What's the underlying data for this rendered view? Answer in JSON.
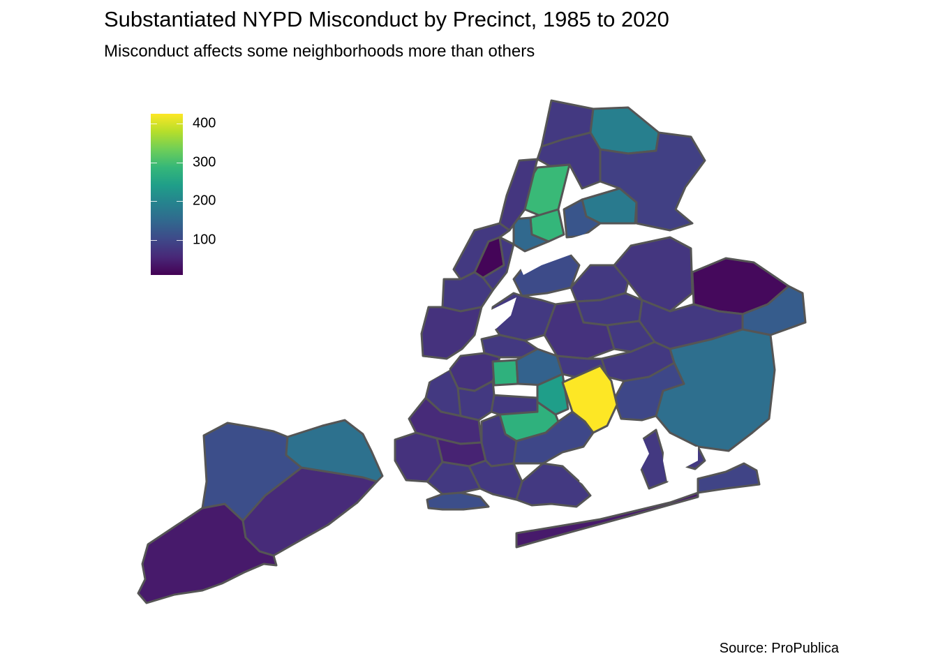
{
  "title": "Substantiated NYPD Misconduct by Precinct, 1985 to 2020",
  "subtitle": "Misconduct affects some neighborhoods more than others",
  "caption": "Source: ProPublica",
  "legend": {
    "min": 10,
    "max": 425,
    "breaks": [
      {
        "value": 400,
        "label": "400"
      },
      {
        "value": 300,
        "label": "300"
      },
      {
        "value": 200,
        "label": "200"
      },
      {
        "value": 100,
        "label": "100"
      }
    ],
    "palette": [
      "#440154",
      "#482878",
      "#3e4989",
      "#31688e",
      "#26828e",
      "#1f9e89",
      "#35b779",
      "#6ece58",
      "#b5de2b",
      "#fde725"
    ]
  },
  "map": {
    "border_color": "#555555",
    "water_color": "#ffffff",
    "regions": [
      {
        "name": "staten-island-south",
        "value": 40
      },
      {
        "name": "staten-island-mid",
        "value": 60
      },
      {
        "name": "staten-island-northwest",
        "value": 110
      },
      {
        "name": "staten-island-northeast",
        "value": 165
      },
      {
        "name": "bronx-north",
        "value": 80
      },
      {
        "name": "bronx-northeast",
        "value": 190
      },
      {
        "name": "bronx-central-west",
        "value": 290
      },
      {
        "name": "bronx-central",
        "value": 285
      },
      {
        "name": "bronx-east",
        "value": 180
      },
      {
        "name": "bronx-throgs-neck",
        "value": 90
      },
      {
        "name": "bronx-soundview",
        "value": 120
      },
      {
        "name": "bronx-south",
        "value": 150
      },
      {
        "name": "manhattan-upper",
        "value": 75
      },
      {
        "name": "manhattan-harlem",
        "value": 15
      },
      {
        "name": "manhattan-midtown",
        "value": 80
      },
      {
        "name": "manhattan-lower",
        "value": 70
      },
      {
        "name": "queens-astoria",
        "value": 105
      },
      {
        "name": "queens-flushing",
        "value": 75
      },
      {
        "name": "queens-bayside",
        "value": 20
      },
      {
        "name": "queens-east",
        "value": 130
      },
      {
        "name": "queens-jamaica",
        "value": 160
      },
      {
        "name": "queens-central",
        "value": 70
      },
      {
        "name": "queens-ozone-park",
        "value": 100
      },
      {
        "name": "queens-rockaway-east",
        "value": 95
      },
      {
        "name": "queens-rockaway-west",
        "value": 40
      },
      {
        "name": "brooklyn-bed-stuy",
        "value": 275
      },
      {
        "name": "brooklyn-crown-heights",
        "value": 240
      },
      {
        "name": "brooklyn-flatbush",
        "value": 275
      },
      {
        "name": "brooklyn-east-new-york",
        "value": 425
      },
      {
        "name": "brooklyn-bushwick",
        "value": 140
      },
      {
        "name": "brooklyn-williamsburg",
        "value": 70
      },
      {
        "name": "brooklyn-sunset-park",
        "value": 60
      },
      {
        "name": "brooklyn-bay-ridge",
        "value": 70
      },
      {
        "name": "brooklyn-borough-park",
        "value": 50
      },
      {
        "name": "brooklyn-canarsie",
        "value": 100
      },
      {
        "name": "brooklyn-coney-island",
        "value": 110
      }
    ]
  }
}
